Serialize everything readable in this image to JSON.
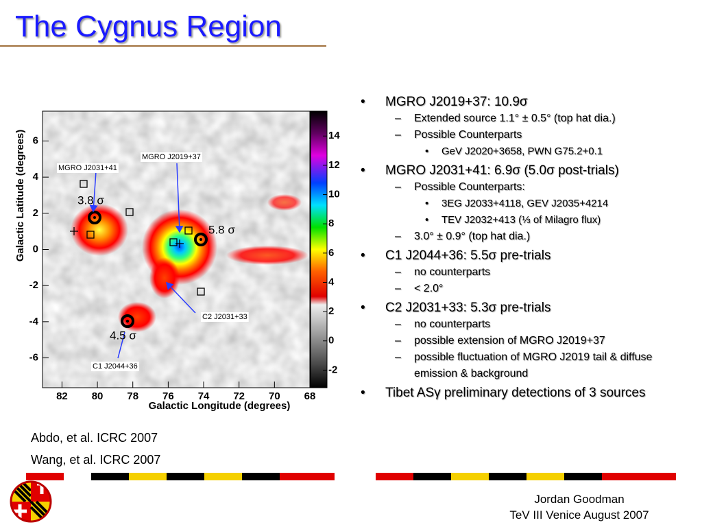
{
  "title": "The Cygnus Region",
  "sky_map": {
    "x_label": "Galactic Longitude (degrees)",
    "y_label": "Galactic Latitude (degrees)",
    "xlim": [
      83.1,
      68
    ],
    "xticks": [
      82,
      80,
      78,
      76,
      74,
      72,
      70,
      68
    ],
    "ylim": [
      -7.65,
      7.65
    ],
    "yticks": [
      -6,
      -4,
      -2,
      0,
      2,
      4,
      6
    ],
    "colorbar_lim": [
      -3.2,
      15.7
    ],
    "colorbar_ticks": [
      -2,
      0,
      2,
      4,
      6,
      8,
      10,
      12,
      14
    ],
    "annotations": [
      "MGRO J2031+41",
      "MGRO J2019+37",
      "C2 J2031+33",
      "C1 J2044+36",
      "3.8 σ",
      "5.8 σ",
      "4.5 σ"
    ]
  },
  "bullets": [
    {
      "level": 1,
      "text": "MGRO J2019+37: 10.9σ"
    },
    {
      "level": 2,
      "text": "Extended source 1.1° ± 0.5° (top hat dia.)"
    },
    {
      "level": 2,
      "text": "Possible Counterparts"
    },
    {
      "level": 3,
      "text": "GeV J2020+3658, PWN G75.2+0.1"
    },
    {
      "level": 1,
      "text": "MGRO J2031+41: 6.9σ (5.0σ post-trials)"
    },
    {
      "level": 2,
      "text": "Possible Counterparts:"
    },
    {
      "level": 3,
      "text": "3EG J2033+4118, GEV J2035+4214"
    },
    {
      "level": 3,
      "text": "TEV J2032+413 (⅓ of Milagro flux)"
    },
    {
      "level": 2,
      "text": "3.0° ± 0.9° (top hat dia.)"
    },
    {
      "level": 1,
      "text": "C1 J2044+36: 5.5σ pre-trials"
    },
    {
      "level": 2,
      "text": "no counterparts"
    },
    {
      "level": 2,
      "text": "< 2.0°"
    },
    {
      "level": 1,
      "text": "C2 J2031+33: 5.3σ pre-trials"
    },
    {
      "level": 2,
      "text": "no counterparts"
    },
    {
      "level": 2,
      "text": "possible extension of MGRO J2019+37"
    },
    {
      "level": 2,
      "text": "possible fluctuation of MGRO J2019 tail & diffuse emission & background"
    },
    {
      "level": 1,
      "text": "Tibet ASγ preliminary detections of 3 sources"
    }
  ],
  "references": [
    "Abdo, et al. ICRC 2007",
    "Wang, et al. ICRC 2007"
  ],
  "footer": {
    "author": "Jordan Goodman",
    "event": "TeV III Venice August 2007"
  }
}
